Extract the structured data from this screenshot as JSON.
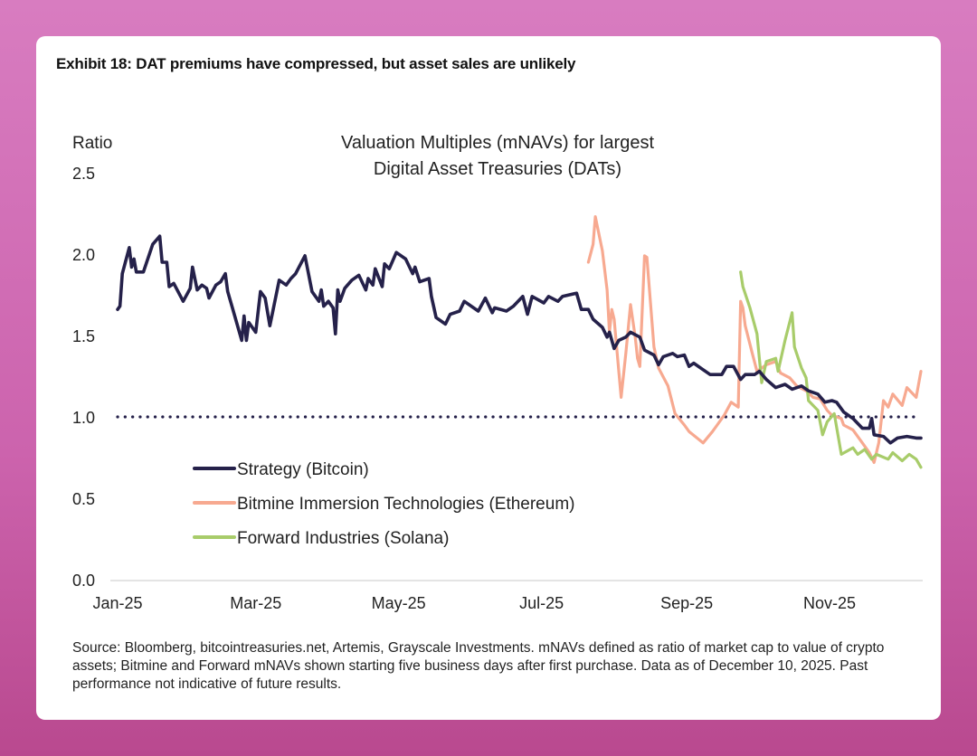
{
  "exhibit_title": "Exhibit 18: DAT premiums have compressed, but asset sales are unlikely",
  "footer": "Source: Bloomberg, bitcointreasuries.net, Artemis, Grayscale Investments. mNAVs defined as ratio of market cap to value of crypto assets; Bitmine and Forward mNAVs shown starting five business days after first purchase. Data as of December 10, 2025. Past performance not indicative of future results.",
  "chart_data": {
    "type": "line",
    "title_lines": [
      "Valuation Multiples (mNAVs) for largest",
      "Digital Asset Treasuries (DATs)"
    ],
    "ylabel": "Ratio",
    "xlabel": "",
    "x_units": "days since 2025-01-01",
    "xlim": [
      0,
      343
    ],
    "ylim": [
      0,
      2.5
    ],
    "yticks": [
      0.0,
      0.5,
      1.0,
      1.5,
      2.0,
      2.5
    ],
    "ytick_labels": [
      "0.0",
      "0.5",
      "1.0",
      "1.5",
      "2.0",
      "2.5"
    ],
    "xticks": [
      0,
      59,
      120,
      181,
      243,
      304
    ],
    "xtick_labels": [
      "Jan-25",
      "Mar-25",
      "May-25",
      "Jul-25",
      "Sep-25",
      "Nov-25"
    ],
    "reference_line": {
      "y": 1.0,
      "style": "dotted",
      "color": "#25214a"
    },
    "legend_position": "bottom-left",
    "series": [
      {
        "name": "Strategy (Bitcoin)",
        "color": "#25214a",
        "points": [
          [
            0,
            1.66
          ],
          [
            1,
            1.68
          ],
          [
            2,
            1.88
          ],
          [
            5,
            2.04
          ],
          [
            6,
            1.92
          ],
          [
            7,
            1.97
          ],
          [
            8,
            1.89
          ],
          [
            11,
            1.89
          ],
          [
            15,
            2.06
          ],
          [
            18,
            2.11
          ],
          [
            19,
            1.95
          ],
          [
            21,
            1.95
          ],
          [
            22,
            1.8
          ],
          [
            24,
            1.82
          ],
          [
            28,
            1.71
          ],
          [
            31,
            1.79
          ],
          [
            32,
            1.92
          ],
          [
            34,
            1.78
          ],
          [
            36,
            1.81
          ],
          [
            38,
            1.79
          ],
          [
            39,
            1.73
          ],
          [
            42,
            1.81
          ],
          [
            44,
            1.83
          ],
          [
            46,
            1.88
          ],
          [
            47,
            1.77
          ],
          [
            49,
            1.67
          ],
          [
            53,
            1.47
          ],
          [
            54,
            1.62
          ],
          [
            55,
            1.47
          ],
          [
            56,
            1.58
          ],
          [
            59,
            1.52
          ],
          [
            61,
            1.77
          ],
          [
            63,
            1.73
          ],
          [
            65,
            1.56
          ],
          [
            66,
            1.63
          ],
          [
            69,
            1.84
          ],
          [
            72,
            1.81
          ],
          [
            74,
            1.85
          ],
          [
            76,
            1.88
          ],
          [
            80,
            1.99
          ],
          [
            83,
            1.77
          ],
          [
            86,
            1.71
          ],
          [
            87,
            1.78
          ],
          [
            88,
            1.68
          ],
          [
            90,
            1.71
          ],
          [
            92,
            1.67
          ],
          [
            93,
            1.51
          ],
          [
            94,
            1.78
          ],
          [
            95,
            1.71
          ],
          [
            97,
            1.79
          ],
          [
            100,
            1.84
          ],
          [
            103,
            1.87
          ],
          [
            106,
            1.78
          ],
          [
            107,
            1.85
          ],
          [
            109,
            1.81
          ],
          [
            110,
            1.91
          ],
          [
            113,
            1.8
          ],
          [
            114,
            1.94
          ],
          [
            116,
            1.91
          ],
          [
            119,
            2.01
          ],
          [
            123,
            1.97
          ],
          [
            126,
            1.88
          ],
          [
            127,
            1.92
          ],
          [
            129,
            1.83
          ],
          [
            133,
            1.85
          ],
          [
            134,
            1.74
          ],
          [
            136,
            1.61
          ],
          [
            140,
            1.57
          ],
          [
            142,
            1.63
          ],
          [
            146,
            1.65
          ],
          [
            148,
            1.71
          ],
          [
            152,
            1.67
          ],
          [
            154,
            1.65
          ],
          [
            157,
            1.73
          ],
          [
            160,
            1.64
          ],
          [
            161,
            1.67
          ],
          [
            166,
            1.65
          ],
          [
            169,
            1.68
          ],
          [
            173,
            1.74
          ],
          [
            175,
            1.63
          ],
          [
            177,
            1.74
          ],
          [
            182,
            1.7
          ],
          [
            184,
            1.74
          ],
          [
            188,
            1.71
          ],
          [
            190,
            1.74
          ],
          [
            196,
            1.76
          ],
          [
            198,
            1.66
          ],
          [
            201,
            1.66
          ],
          [
            203,
            1.6
          ],
          [
            207,
            1.55
          ],
          [
            209,
            1.49
          ],
          [
            210,
            1.52
          ],
          [
            212,
            1.42
          ],
          [
            214,
            1.47
          ],
          [
            217,
            1.49
          ],
          [
            219,
            1.52
          ],
          [
            223,
            1.49
          ],
          [
            225,
            1.41
          ],
          [
            229,
            1.38
          ],
          [
            231,
            1.32
          ],
          [
            233,
            1.37
          ],
          [
            237,
            1.39
          ],
          [
            239,
            1.37
          ],
          [
            242,
            1.38
          ],
          [
            244,
            1.31
          ],
          [
            246,
            1.33
          ],
          [
            250,
            1.29
          ],
          [
            253,
            1.26
          ],
          [
            258,
            1.26
          ],
          [
            260,
            1.31
          ],
          [
            263,
            1.31
          ],
          [
            266,
            1.23
          ],
          [
            268,
            1.26
          ],
          [
            272,
            1.26
          ],
          [
            274,
            1.28
          ],
          [
            277,
            1.23
          ],
          [
            281,
            1.18
          ],
          [
            285,
            1.2
          ],
          [
            288,
            1.17
          ],
          [
            292,
            1.19
          ],
          [
            295,
            1.16
          ],
          [
            299,
            1.14
          ],
          [
            302,
            1.09
          ],
          [
            305,
            1.1
          ],
          [
            307,
            1.09
          ],
          [
            310,
            1.03
          ],
          [
            314,
            0.99
          ],
          [
            318,
            0.93
          ],
          [
            321,
            0.93
          ],
          [
            322,
            0.99
          ],
          [
            323,
            0.89
          ],
          [
            327,
            0.88
          ],
          [
            330,
            0.84
          ],
          [
            333,
            0.87
          ],
          [
            337,
            0.88
          ],
          [
            341,
            0.87
          ],
          [
            343,
            0.87
          ]
        ]
      },
      {
        "name": "Bitmine Immersion Technologies (Ethereum)",
        "color": "#f7a990",
        "points": [
          [
            201,
            1.95
          ],
          [
            203,
            2.06
          ],
          [
            204,
            2.23
          ],
          [
            207,
            2.02
          ],
          [
            209,
            1.78
          ],
          [
            210,
            1.52
          ],
          [
            211,
            1.66
          ],
          [
            212,
            1.6
          ],
          [
            215,
            1.12
          ],
          [
            217,
            1.39
          ],
          [
            219,
            1.69
          ],
          [
            221,
            1.49
          ],
          [
            222,
            1.36
          ],
          [
            223,
            1.31
          ],
          [
            225,
            1.99
          ],
          [
            226,
            1.98
          ],
          [
            229,
            1.43
          ],
          [
            231,
            1.3
          ],
          [
            235,
            1.19
          ],
          [
            238,
            1.02
          ],
          [
            242,
            0.95
          ],
          [
            244,
            0.91
          ],
          [
            250,
            0.84
          ],
          [
            254,
            0.91
          ],
          [
            256,
            0.95
          ],
          [
            259,
            1.01
          ],
          [
            262,
            1.09
          ],
          [
            265,
            1.06
          ],
          [
            266,
            1.71
          ],
          [
            267,
            1.67
          ],
          [
            268,
            1.56
          ],
          [
            271,
            1.39
          ],
          [
            273,
            1.28
          ],
          [
            277,
            1.32
          ],
          [
            281,
            1.34
          ],
          [
            283,
            1.27
          ],
          [
            287,
            1.24
          ],
          [
            290,
            1.19
          ],
          [
            294,
            1.16
          ],
          [
            297,
            1.12
          ],
          [
            300,
            1.11
          ],
          [
            303,
            1.04
          ],
          [
            305,
            1.01
          ],
          [
            309,
            0.99
          ],
          [
            310,
            0.95
          ],
          [
            314,
            0.92
          ],
          [
            318,
            0.84
          ],
          [
            321,
            0.78
          ],
          [
            323,
            0.72
          ],
          [
            325,
            0.84
          ],
          [
            327,
            1.1
          ],
          [
            329,
            1.06
          ],
          [
            331,
            1.14
          ],
          [
            335,
            1.07
          ],
          [
            337,
            1.18
          ],
          [
            341,
            1.12
          ],
          [
            343,
            1.28
          ]
        ]
      },
      {
        "name": "Forward Industries (Solana)",
        "color": "#a8cc6a",
        "points": [
          [
            266,
            1.89
          ],
          [
            267,
            1.8
          ],
          [
            270,
            1.67
          ],
          [
            273,
            1.51
          ],
          [
            275,
            1.21
          ],
          [
            277,
            1.34
          ],
          [
            281,
            1.36
          ],
          [
            282,
            1.28
          ],
          [
            285,
            1.47
          ],
          [
            288,
            1.64
          ],
          [
            289,
            1.43
          ],
          [
            292,
            1.3
          ],
          [
            294,
            1.24
          ],
          [
            295,
            1.1
          ],
          [
            299,
            1.04
          ],
          [
            301,
            0.89
          ],
          [
            303,
            0.97
          ],
          [
            306,
            1.02
          ],
          [
            309,
            0.77
          ],
          [
            314,
            0.81
          ],
          [
            316,
            0.77
          ],
          [
            319,
            0.8
          ],
          [
            322,
            0.74
          ],
          [
            324,
            0.77
          ],
          [
            329,
            0.74
          ],
          [
            331,
            0.78
          ],
          [
            335,
            0.73
          ],
          [
            338,
            0.77
          ],
          [
            341,
            0.74
          ],
          [
            343,
            0.69
          ]
        ]
      }
    ]
  }
}
